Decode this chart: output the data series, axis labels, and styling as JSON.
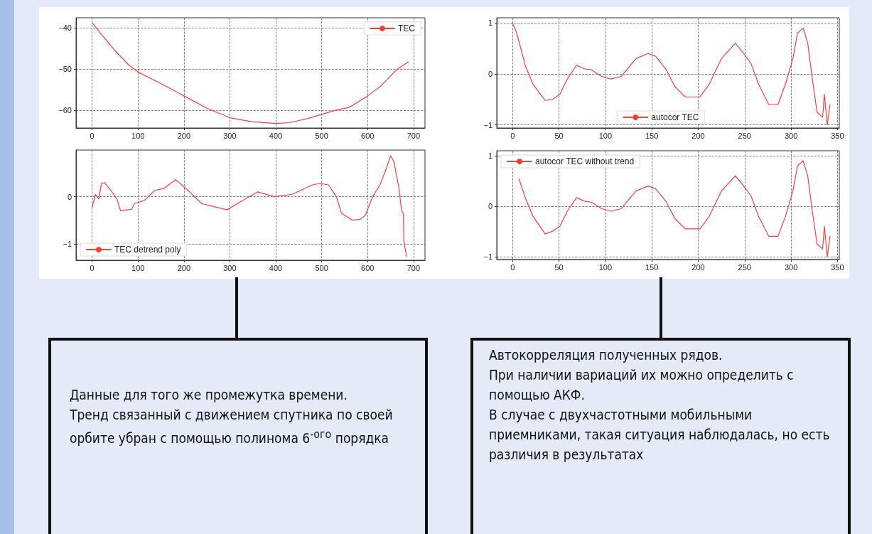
{
  "chart_data": [
    {
      "type": "line",
      "xlim": [
        -35,
        725
      ],
      "ylim": [
        -64.3,
        -37.5
      ],
      "xticks": [
        0,
        100,
        200,
        300,
        400,
        500,
        600,
        700
      ],
      "yticks": [
        -60,
        -50,
        -40
      ],
      "grid": true,
      "legend": "top right",
      "marker": "none",
      "line_style": "solid",
      "x": [
        0,
        20,
        50,
        80,
        100,
        150,
        200,
        250,
        300,
        350,
        400,
        430,
        470,
        500,
        530,
        560,
        600,
        630,
        660,
        675,
        689
      ],
      "series": [
        {
          "name": "TEC",
          "color": "#ff3b3b",
          "values": [
            -38.7,
            -41.5,
            -45.5,
            -49,
            -50.7,
            -53.5,
            -56.5,
            -59.5,
            -61.8,
            -62.8,
            -63.2,
            -63,
            -62,
            -61,
            -60,
            -59.3,
            -56.5,
            -54,
            -50.5,
            -49.2,
            -48.2
          ]
        }
      ]
    },
    {
      "type": "line",
      "xlim": [
        -35,
        725
      ],
      "ylim": [
        -1.35,
        0.99
      ],
      "xticks": [
        0,
        100,
        200,
        300,
        400,
        500,
        600,
        700
      ],
      "yticks": [
        -1,
        0
      ],
      "grid": true,
      "legend": "bottom left",
      "marker": "none",
      "line_style": "solid",
      "x": [
        0,
        7,
        15,
        20,
        27,
        43,
        54,
        62,
        86,
        92,
        114,
        136,
        157,
        182,
        207,
        239,
        261,
        294,
        316,
        360,
        398,
        436,
        480,
        496,
        515,
        532,
        543,
        567,
        584,
        595,
        611,
        627,
        641,
        650,
        657,
        668,
        674,
        678,
        679,
        685
      ],
      "series": [
        {
          "name": "TEC detrend poly",
          "color": "#ff3b3b",
          "values": [
            -0.23,
            0.05,
            -0.05,
            0.27,
            0.3,
            0.1,
            -0.05,
            -0.3,
            -0.27,
            -0.15,
            -0.08,
            0.13,
            0.18,
            0.36,
            0.15,
            -0.15,
            -0.2,
            -0.28,
            -0.15,
            0.1,
            0,
            0.05,
            0.25,
            0.28,
            0.25,
            0,
            -0.35,
            -0.5,
            -0.48,
            -0.4,
            0,
            0.25,
            0.6,
            0.87,
            0.75,
            0.2,
            -0.3,
            -0.35,
            -0.95,
            -1.27
          ]
        }
      ]
    },
    {
      "type": "line",
      "xlim": [
        -17,
        352
      ],
      "ylim": [
        -1.06,
        1.1
      ],
      "xticks": [
        0,
        50,
        100,
        150,
        200,
        250,
        300,
        350
      ],
      "yticks": [
        -1,
        0,
        1
      ],
      "grid": true,
      "legend": "bottom",
      "marker": "none",
      "line_style": "solid",
      "x": [
        0,
        4.5,
        14,
        22,
        35,
        43,
        51,
        59,
        69,
        77,
        85,
        96,
        106,
        117,
        133,
        146,
        154,
        165,
        175,
        186,
        202,
        212,
        225,
        240,
        249,
        257,
        265,
        276,
        286,
        294,
        302,
        307,
        313,
        318,
        323,
        328,
        334,
        336,
        339,
        342
      ],
      "series": [
        {
          "name": "autocor TEC",
          "color": "#ff3b3b",
          "values": [
            1,
            0.8,
            0.15,
            -0.2,
            -0.52,
            -0.5,
            -0.4,
            -0.1,
            0.17,
            0.1,
            0.08,
            -0.05,
            -0.1,
            -0.05,
            0.3,
            0.4,
            0.35,
            0.1,
            -0.25,
            -0.45,
            -0.45,
            -0.2,
            0.3,
            0.6,
            0.4,
            0.2,
            -0.2,
            -0.6,
            -0.6,
            -0.2,
            0.3,
            0.8,
            0.9,
            0.6,
            -0.1,
            -0.75,
            -0.85,
            -0.4,
            -1,
            -0.6
          ]
        }
      ]
    },
    {
      "type": "line",
      "xlim": [
        -17,
        352
      ],
      "ylim": [
        -1.06,
        1.1
      ],
      "xticks": [
        0,
        50,
        100,
        150,
        200,
        250,
        300,
        350
      ],
      "yticks": [
        -1,
        0,
        1
      ],
      "grid": true,
      "legend": "top left",
      "marker": "none",
      "line_style": "solid",
      "x": [
        7,
        14,
        22,
        35,
        43,
        51,
        59,
        69,
        77,
        85,
        96,
        106,
        117,
        133,
        146,
        154,
        165,
        175,
        186,
        202,
        212,
        225,
        240,
        249,
        257,
        265,
        276,
        286,
        294,
        302,
        307,
        313,
        318,
        323,
        328,
        334,
        336,
        339,
        342
      ],
      "series": [
        {
          "name": "autocor TEC without trend",
          "color": "#ff3b3b",
          "values": [
            0.54,
            0.15,
            -0.2,
            -0.55,
            -0.5,
            -0.4,
            -0.1,
            0.17,
            0.1,
            0.08,
            -0.05,
            -0.1,
            -0.05,
            0.3,
            0.4,
            0.35,
            0.1,
            -0.25,
            -0.45,
            -0.45,
            -0.2,
            0.3,
            0.6,
            0.4,
            0.2,
            -0.2,
            -0.6,
            -0.6,
            -0.2,
            0.3,
            0.8,
            0.9,
            0.6,
            -0.1,
            -0.75,
            -0.85,
            -0.4,
            -1,
            -0.6
          ]
        }
      ]
    },
    {
      "type": "other",
      "annotations": [
        "Данные для того же промежутка времени.",
        "Тренд связанный с движением спутника по своей орбите убран с помощью полинома 6$^{-ого}$ порядка"
      ]
    },
    {
      "type": "other",
      "annotations": [
        "Автокорреляция полученных рядов.",
        "При наличии вариаций их можно определить с помощью АКФ.",
        "В случае с двухчастотными мобильными приемниками, такая ситуация наблюдалась, но есть различия в результатах"
      ]
    }
  ]
}
